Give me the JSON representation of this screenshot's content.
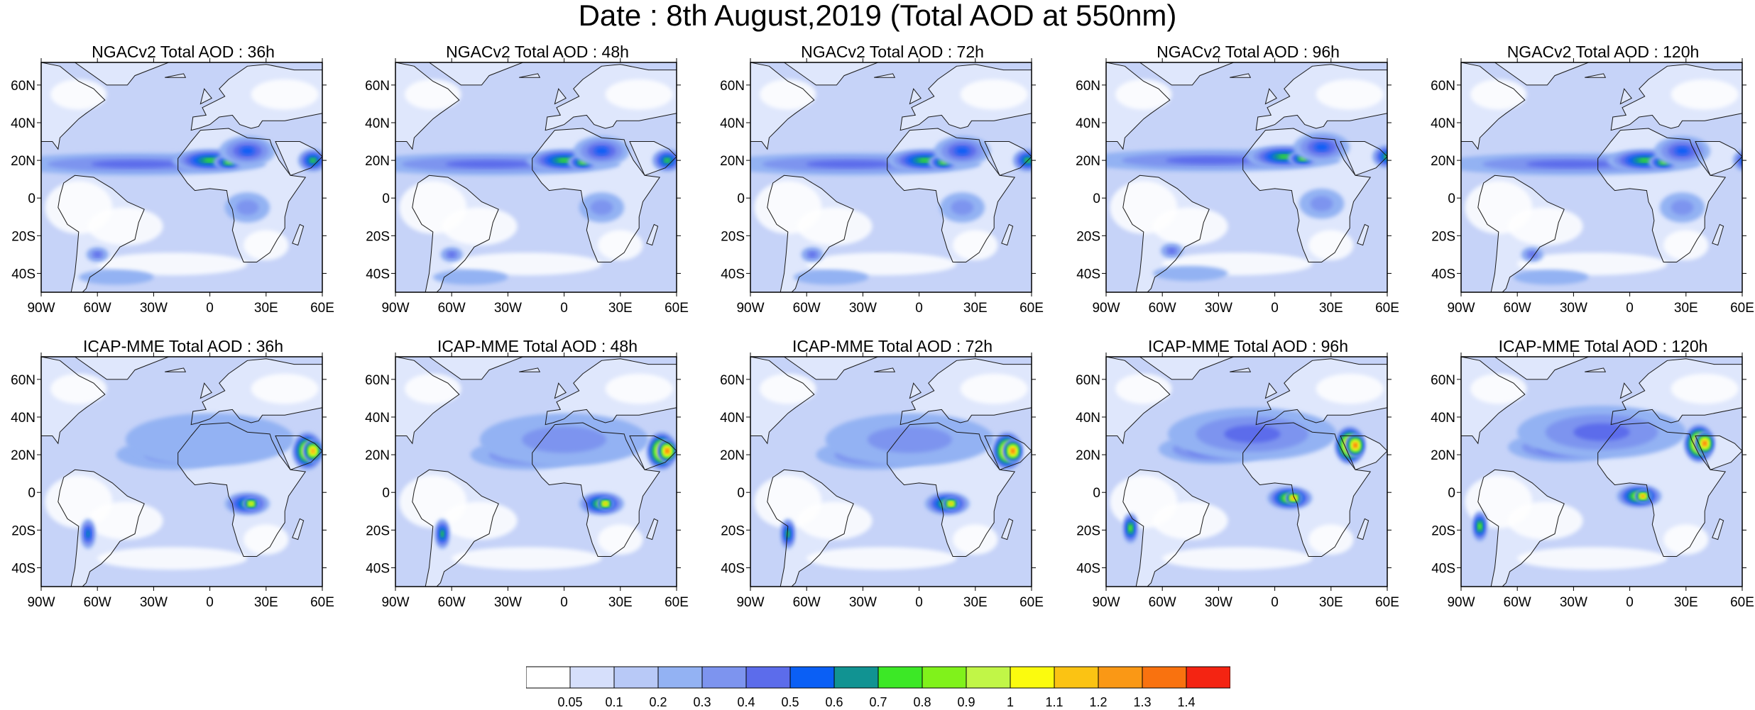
{
  "title": "Date : 8th August,2019 (Total AOD at 550nm)",
  "panels": [
    {
      "title": "NGACv2 Total AOD : 36h",
      "model": "NGACv2",
      "lead": 36
    },
    {
      "title": "NGACv2 Total AOD : 48h",
      "model": "NGACv2",
      "lead": 48
    },
    {
      "title": "NGACv2 Total AOD : 72h",
      "model": "NGACv2",
      "lead": 72
    },
    {
      "title": "NGACv2 Total AOD : 96h",
      "model": "NGACv2",
      "lead": 96
    },
    {
      "title": "NGACv2 Total AOD : 120h",
      "model": "NGACv2",
      "lead": 120
    },
    {
      "title": "ICAP-MME Total AOD : 36h",
      "model": "ICAP",
      "lead": 36
    },
    {
      "title": "ICAP-MME Total AOD : 48h",
      "model": "ICAP",
      "lead": 48
    },
    {
      "title": "ICAP-MME Total AOD : 72h",
      "model": "ICAP",
      "lead": 72
    },
    {
      "title": "ICAP-MME Total AOD : 96h",
      "model": "ICAP",
      "lead": 96
    },
    {
      "title": "ICAP-MME Total AOD : 120h",
      "model": "ICAP",
      "lead": 120
    }
  ],
  "map_extent": {
    "lon": [
      -90,
      60
    ],
    "lat": [
      -50,
      72
    ]
  },
  "lon_ticks": [
    {
      "label": "90W",
      "value": -90
    },
    {
      "label": "60W",
      "value": -60
    },
    {
      "label": "30W",
      "value": -30
    },
    {
      "label": "0",
      "value": 0
    },
    {
      "label": "30E",
      "value": 30
    },
    {
      "label": "60E",
      "value": 60
    }
  ],
  "lat_ticks": [
    {
      "label": "60N",
      "value": 60
    },
    {
      "label": "40N",
      "value": 40
    },
    {
      "label": "20N",
      "value": 20
    },
    {
      "label": "0",
      "value": 0
    },
    {
      "label": "20S",
      "value": -20
    },
    {
      "label": "40S",
      "value": -40
    }
  ],
  "colorbar": {
    "labels": [
      "0.05",
      "0.1",
      "0.2",
      "0.3",
      "0.4",
      "0.5",
      "0.6",
      "0.7",
      "0.8",
      "0.9",
      "1",
      "1.1",
      "1.2",
      "1.3",
      "1.4"
    ],
    "colors": [
      "#ffffff",
      "#d6dffb",
      "#b8c9f7",
      "#93b2f3",
      "#7d94ef",
      "#5c6ceb",
      "#0a5ff5",
      "#119392",
      "#3ce826",
      "#80f21b",
      "#c1f647",
      "#fbfb0e",
      "#fbc313",
      "#fa9815",
      "#f9720f",
      "#f42412"
    ]
  },
  "styles": {
    "ocean_base": "#c6d3f8",
    "land_base": "#dfe7fc",
    "coast": "#1a1a1a"
  }
}
